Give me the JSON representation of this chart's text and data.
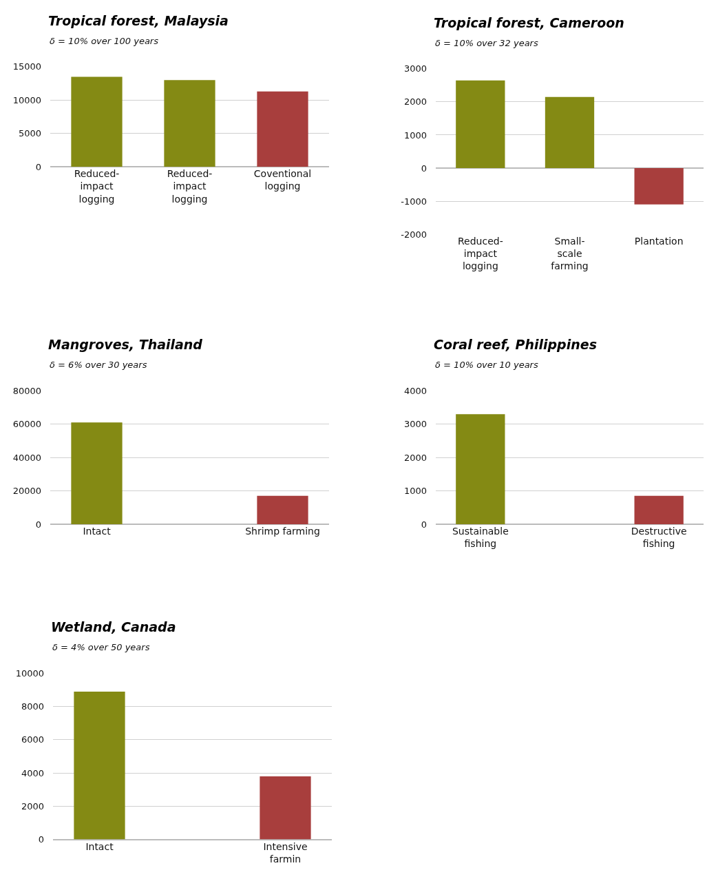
{
  "chart_data": [
    {
      "type": "bar",
      "title": "Tropical forest, Malaysia",
      "subtitle": "δ = 10% over 100 years",
      "categories": [
        "Reduced-\nimpact\nlogging",
        "Reduced-\nimpact\nlogging",
        "Coventional\nlogging"
      ],
      "values": [
        13500,
        13000,
        11300
      ],
      "colors": [
        "#848a14",
        "#848a14",
        "#a83e3d"
      ],
      "ylim": [
        0,
        15000
      ],
      "yticks": [
        0,
        5000,
        10000,
        15000
      ],
      "grid": "y"
    },
    {
      "type": "bar",
      "title": "Tropical forest, Cameroon",
      "subtitle": "δ = 10% over 32 years",
      "categories": [
        "Reduced-\nimpact\nlogging",
        "Small-\nscale\nfarming",
        "Plantation"
      ],
      "values": [
        2650,
        2150,
        -1100
      ],
      "colors": [
        "#848a14",
        "#848a14",
        "#a83e3d"
      ],
      "ylim": [
        -2000,
        3000
      ],
      "yticks": [
        -2000,
        -1000,
        0,
        1000,
        2000,
        3000
      ],
      "grid": "y"
    },
    {
      "type": "bar",
      "title": "Mangroves, Thailand",
      "subtitle": "δ = 6% over 30 years",
      "categories": [
        "Intact",
        null,
        "Shrimp farming"
      ],
      "values": [
        61000,
        null,
        17000
      ],
      "colors": [
        "#848a14",
        "#848a14",
        "#a83e3d"
      ],
      "ylim": [
        0,
        80000
      ],
      "yticks": [
        0,
        20000,
        40000,
        60000,
        80000
      ],
      "grid": "y"
    },
    {
      "type": "bar",
      "title": "Coral reef, Philippines",
      "subtitle": "δ = 10% over 10 years",
      "categories": [
        "Sustainable\nfishing",
        null,
        "Destructive\nfishing"
      ],
      "values": [
        3300,
        null,
        850
      ],
      "colors": [
        "#848a14",
        "#848a14",
        "#a83e3d"
      ],
      "ylim": [
        0,
        4000
      ],
      "yticks": [
        0,
        1000,
        2000,
        3000,
        4000
      ],
      "grid": "y"
    },
    {
      "type": "bar",
      "title": "Wetland, Canada",
      "subtitle": "δ = 4% over 50 years",
      "categories": [
        "Intact",
        null,
        "Intensive\nfarmin"
      ],
      "values": [
        8900,
        null,
        3800
      ],
      "colors": [
        "#848a14",
        "#848a14",
        "#a83e3d"
      ],
      "ylim": [
        0,
        10000
      ],
      "yticks": [
        0,
        2000,
        4000,
        6000,
        8000,
        10000
      ],
      "grid": "y"
    }
  ]
}
